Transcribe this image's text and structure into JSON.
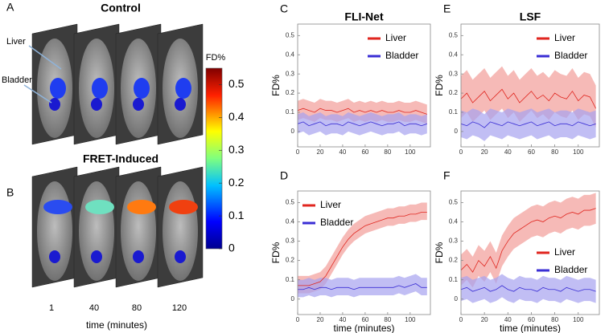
{
  "images": {
    "control": {
      "label": "A",
      "title": "Control",
      "annotations": [
        "Liver",
        "Bladder"
      ]
    },
    "fret": {
      "label": "B",
      "title": "FRET-Induced"
    },
    "times": [
      1,
      40,
      80,
      120
    ],
    "time_label": "time (minutes)"
  },
  "colorbar": {
    "title": "FD%",
    "lim": [
      0,
      0.55
    ],
    "ticks": [
      0,
      0.1,
      0.2,
      0.3,
      0.4,
      0.5
    ]
  },
  "chart_data": [
    {
      "type": "line",
      "panel": "C",
      "title": "FLI-Net",
      "ylabel": "FD%",
      "legend": "upper right",
      "xlim": [
        0,
        118
      ],
      "xticks": [
        0,
        20,
        40,
        60,
        80,
        100
      ],
      "ylim": [
        -0.08,
        0.56
      ],
      "yticks": [
        0,
        0.1,
        0.2,
        0.3,
        0.4,
        0.5
      ],
      "x": [
        0,
        5,
        10,
        15,
        20,
        25,
        30,
        35,
        40,
        45,
        50,
        55,
        60,
        65,
        70,
        75,
        80,
        85,
        90,
        95,
        100,
        105,
        110,
        115
      ],
      "series": [
        {
          "name": "Liver",
          "color": "#e0261f",
          "band_color": "#f29c98",
          "values": [
            0.11,
            0.12,
            0.11,
            0.1,
            0.12,
            0.11,
            0.11,
            0.1,
            0.11,
            0.12,
            0.1,
            0.11,
            0.1,
            0.11,
            0.1,
            0.11,
            0.1,
            0.1,
            0.11,
            0.1,
            0.1,
            0.11,
            0.1,
            0.09
          ],
          "lower": [
            0.06,
            0.07,
            0.06,
            0.05,
            0.07,
            0.06,
            0.06,
            0.05,
            0.06,
            0.07,
            0.05,
            0.06,
            0.05,
            0.06,
            0.05,
            0.06,
            0.05,
            0.05,
            0.06,
            0.05,
            0.05,
            0.06,
            0.05,
            0.04
          ],
          "upper": [
            0.16,
            0.17,
            0.16,
            0.15,
            0.17,
            0.16,
            0.16,
            0.15,
            0.16,
            0.17,
            0.15,
            0.16,
            0.15,
            0.16,
            0.15,
            0.16,
            0.15,
            0.15,
            0.16,
            0.15,
            0.15,
            0.16,
            0.15,
            0.14
          ]
        },
        {
          "name": "Bladder",
          "color": "#3a2ed4",
          "band_color": "#a7a2ef",
          "values": [
            0.04,
            0.05,
            0.03,
            0.04,
            0.05,
            0.03,
            0.04,
            0.04,
            0.03,
            0.05,
            0.04,
            0.03,
            0.04,
            0.05,
            0.04,
            0.03,
            0.04,
            0.04,
            0.05,
            0.03,
            0.04,
            0.04,
            0.03,
            0.04
          ],
          "lower": [
            -0.01,
            0.0,
            -0.02,
            -0.01,
            0.0,
            -0.02,
            -0.01,
            -0.01,
            -0.02,
            0.0,
            -0.01,
            -0.02,
            -0.01,
            0.0,
            -0.01,
            -0.02,
            -0.01,
            -0.01,
            0.0,
            -0.02,
            -0.01,
            -0.01,
            -0.02,
            -0.01
          ],
          "upper": [
            0.09,
            0.1,
            0.08,
            0.09,
            0.1,
            0.08,
            0.09,
            0.09,
            0.08,
            0.1,
            0.09,
            0.08,
            0.09,
            0.1,
            0.09,
            0.08,
            0.09,
            0.09,
            0.1,
            0.08,
            0.09,
            0.09,
            0.08,
            0.09
          ]
        }
      ]
    },
    {
      "type": "line",
      "panel": "E",
      "title": "LSF",
      "ylabel": "FD%",
      "legend": "upper right",
      "xlim": [
        0,
        118
      ],
      "xticks": [
        0,
        20,
        40,
        60,
        80,
        100
      ],
      "ylim": [
        -0.08,
        0.56
      ],
      "yticks": [
        0,
        0.1,
        0.2,
        0.3,
        0.4,
        0.5
      ],
      "x": [
        0,
        5,
        10,
        15,
        20,
        25,
        30,
        35,
        40,
        45,
        50,
        55,
        60,
        65,
        70,
        75,
        80,
        85,
        90,
        95,
        100,
        105,
        110,
        115
      ],
      "series": [
        {
          "name": "Liver",
          "color": "#e0261f",
          "band_color": "#f29c98",
          "values": [
            0.17,
            0.2,
            0.15,
            0.18,
            0.21,
            0.16,
            0.19,
            0.22,
            0.17,
            0.2,
            0.15,
            0.18,
            0.21,
            0.17,
            0.19,
            0.16,
            0.2,
            0.18,
            0.17,
            0.21,
            0.16,
            0.19,
            0.18,
            0.12
          ],
          "lower": [
            0.07,
            0.1,
            0.05,
            0.08,
            0.11,
            0.06,
            0.09,
            0.12,
            0.07,
            0.1,
            0.05,
            0.08,
            0.11,
            0.07,
            0.09,
            0.06,
            0.1,
            0.08,
            0.07,
            0.11,
            0.06,
            0.09,
            0.08,
            0.02
          ],
          "upper": [
            0.29,
            0.32,
            0.27,
            0.3,
            0.33,
            0.28,
            0.31,
            0.34,
            0.29,
            0.32,
            0.27,
            0.3,
            0.33,
            0.29,
            0.31,
            0.28,
            0.32,
            0.3,
            0.29,
            0.33,
            0.28,
            0.31,
            0.3,
            0.24
          ]
        },
        {
          "name": "Bladder",
          "color": "#3a2ed4",
          "band_color": "#a7a2ef",
          "values": [
            0.04,
            0.03,
            0.05,
            0.04,
            0.02,
            0.05,
            0.04,
            0.03,
            0.05,
            0.04,
            0.03,
            0.04,
            0.05,
            0.03,
            0.04,
            0.05,
            0.03,
            0.04,
            0.04,
            0.03,
            0.05,
            0.04,
            0.03,
            0.04
          ],
          "lower": [
            -0.03,
            -0.04,
            -0.02,
            -0.03,
            -0.05,
            -0.02,
            -0.03,
            -0.04,
            -0.02,
            -0.03,
            -0.04,
            -0.03,
            -0.02,
            -0.04,
            -0.03,
            -0.02,
            -0.04,
            -0.03,
            -0.03,
            -0.04,
            -0.02,
            -0.03,
            -0.04,
            -0.03
          ],
          "upper": [
            0.11,
            0.1,
            0.12,
            0.11,
            0.09,
            0.12,
            0.11,
            0.1,
            0.12,
            0.11,
            0.1,
            0.11,
            0.12,
            0.1,
            0.11,
            0.12,
            0.1,
            0.11,
            0.11,
            0.1,
            0.12,
            0.11,
            0.1,
            0.11
          ]
        }
      ]
    },
    {
      "type": "line",
      "panel": "D",
      "ylabel": "FD%",
      "xlabel": "time (minutes)",
      "legend": "upper left",
      "xlim": [
        0,
        118
      ],
      "xticks": [
        0,
        20,
        40,
        60,
        80,
        100
      ],
      "ylim": [
        -0.08,
        0.56
      ],
      "yticks": [
        0,
        0.1,
        0.2,
        0.3,
        0.4,
        0.5
      ],
      "x": [
        0,
        5,
        10,
        15,
        20,
        25,
        30,
        35,
        40,
        45,
        50,
        55,
        60,
        65,
        70,
        75,
        80,
        85,
        90,
        95,
        100,
        105,
        110,
        115
      ],
      "series": [
        {
          "name": "Liver",
          "color": "#e0261f",
          "band_color": "#f29c98",
          "values": [
            0.07,
            0.07,
            0.07,
            0.08,
            0.09,
            0.12,
            0.17,
            0.22,
            0.27,
            0.31,
            0.34,
            0.36,
            0.38,
            0.39,
            0.4,
            0.41,
            0.42,
            0.42,
            0.43,
            0.43,
            0.44,
            0.44,
            0.45,
            0.45
          ],
          "lower": [
            0.03,
            0.03,
            0.03,
            0.04,
            0.05,
            0.08,
            0.13,
            0.18,
            0.23,
            0.27,
            0.3,
            0.32,
            0.34,
            0.35,
            0.36,
            0.37,
            0.38,
            0.38,
            0.39,
            0.39,
            0.4,
            0.4,
            0.41,
            0.41
          ],
          "upper": [
            0.12,
            0.12,
            0.12,
            0.13,
            0.14,
            0.17,
            0.22,
            0.27,
            0.32,
            0.36,
            0.39,
            0.41,
            0.43,
            0.44,
            0.45,
            0.46,
            0.47,
            0.47,
            0.48,
            0.48,
            0.49,
            0.49,
            0.5,
            0.5
          ]
        },
        {
          "name": "Bladder",
          "color": "#3a2ed4",
          "band_color": "#a7a2ef",
          "values": [
            0.05,
            0.05,
            0.06,
            0.05,
            0.06,
            0.06,
            0.05,
            0.06,
            0.06,
            0.06,
            0.05,
            0.06,
            0.06,
            0.06,
            0.06,
            0.06,
            0.06,
            0.06,
            0.07,
            0.06,
            0.07,
            0.08,
            0.06,
            0.06
          ],
          "lower": [
            0.01,
            0.01,
            0.02,
            0.01,
            0.02,
            0.02,
            0.01,
            0.02,
            0.02,
            0.02,
            0.01,
            0.02,
            0.02,
            0.02,
            0.02,
            0.02,
            0.02,
            0.02,
            0.03,
            0.02,
            0.03,
            0.04,
            0.02,
            0.02
          ],
          "upper": [
            0.1,
            0.1,
            0.11,
            0.1,
            0.11,
            0.11,
            0.1,
            0.11,
            0.11,
            0.11,
            0.1,
            0.11,
            0.11,
            0.11,
            0.11,
            0.11,
            0.11,
            0.11,
            0.12,
            0.11,
            0.12,
            0.13,
            0.11,
            0.11
          ]
        }
      ]
    },
    {
      "type": "line",
      "panel": "F",
      "ylabel": "FD%",
      "xlabel": "time (minutes)",
      "legend": "center right",
      "xlim": [
        0,
        118
      ],
      "xticks": [
        0,
        20,
        40,
        60,
        80,
        100
      ],
      "ylim": [
        -0.08,
        0.56
      ],
      "yticks": [
        0,
        0.1,
        0.2,
        0.3,
        0.4,
        0.5
      ],
      "x": [
        0,
        5,
        10,
        15,
        20,
        25,
        30,
        35,
        40,
        45,
        50,
        55,
        60,
        65,
        70,
        75,
        80,
        85,
        90,
        95,
        100,
        105,
        110,
        115
      ],
      "series": [
        {
          "name": "Liver",
          "color": "#e0261f",
          "band_color": "#f29c98",
          "values": [
            0.15,
            0.18,
            0.14,
            0.2,
            0.17,
            0.22,
            0.16,
            0.25,
            0.3,
            0.34,
            0.36,
            0.38,
            0.4,
            0.41,
            0.4,
            0.42,
            0.43,
            0.42,
            0.44,
            0.45,
            0.44,
            0.46,
            0.46,
            0.47
          ],
          "lower": [
            0.07,
            0.1,
            0.06,
            0.12,
            0.09,
            0.14,
            0.08,
            0.17,
            0.22,
            0.26,
            0.28,
            0.3,
            0.32,
            0.33,
            0.32,
            0.34,
            0.35,
            0.34,
            0.36,
            0.37,
            0.36,
            0.38,
            0.38,
            0.39
          ],
          "upper": [
            0.23,
            0.26,
            0.22,
            0.28,
            0.25,
            0.3,
            0.24,
            0.33,
            0.38,
            0.42,
            0.44,
            0.46,
            0.48,
            0.49,
            0.48,
            0.5,
            0.51,
            0.5,
            0.52,
            0.53,
            0.52,
            0.54,
            0.54,
            0.55
          ]
        },
        {
          "name": "Bladder",
          "color": "#3a2ed4",
          "band_color": "#a7a2ef",
          "values": [
            0.05,
            0.06,
            0.04,
            0.05,
            0.06,
            0.04,
            0.05,
            0.07,
            0.05,
            0.04,
            0.06,
            0.05,
            0.05,
            0.04,
            0.06,
            0.05,
            0.05,
            0.04,
            0.06,
            0.05,
            0.04,
            0.05,
            0.05,
            0.04
          ],
          "lower": [
            -0.01,
            0.0,
            -0.02,
            -0.01,
            0.0,
            -0.02,
            -0.01,
            0.01,
            -0.01,
            -0.02,
            0.0,
            -0.01,
            -0.01,
            -0.02,
            0.0,
            -0.01,
            -0.01,
            -0.02,
            0.0,
            -0.01,
            -0.02,
            -0.01,
            -0.01,
            -0.02
          ],
          "upper": [
            0.11,
            0.12,
            0.1,
            0.11,
            0.12,
            0.1,
            0.11,
            0.13,
            0.11,
            0.1,
            0.12,
            0.11,
            0.11,
            0.1,
            0.12,
            0.11,
            0.11,
            0.1,
            0.12,
            0.11,
            0.1,
            0.11,
            0.11,
            0.1
          ]
        }
      ]
    }
  ]
}
